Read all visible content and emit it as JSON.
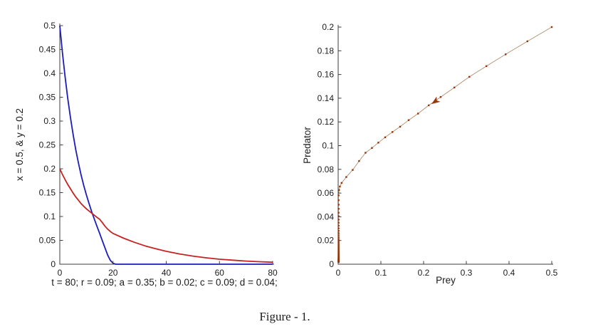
{
  "figure": {
    "caption": "Figure - 1."
  },
  "colors": {
    "axis": "#3c3c3c",
    "text": "#1c1c1c",
    "prey_line": "#1c1cba",
    "predator_line": "#c62222",
    "phase_line": "#b08e6e",
    "phase_marker": "#93330a",
    "arrow": "#9c3808"
  },
  "chart_data": [
    {
      "id": "time-series",
      "type": "line",
      "title": "",
      "xlabel": "t = 80; r = 0.09; a = 0.35; b = 0.02; c = 0.09; d = 0.04;",
      "ylabel": "x = 0.5, & y = 0.2",
      "xlim": [
        0,
        80
      ],
      "ylim": [
        0,
        0.5
      ],
      "grid": false,
      "legend": "none",
      "xticks": {
        "values": [
          0,
          20,
          40,
          60,
          80
        ],
        "labels": [
          "0",
          "20",
          "40",
          "60",
          "80"
        ]
      },
      "yticks": {
        "values": [
          0,
          0.05,
          0.1,
          0.15,
          0.2,
          0.25,
          0.3,
          0.35,
          0.4,
          0.45,
          0.5
        ],
        "labels": [
          "0",
          "0.05",
          "0.1",
          "0.15",
          "0.2",
          "0.25",
          "0.3",
          "0.35",
          "0.4",
          "0.45",
          "0.5"
        ]
      },
      "series": [
        {
          "name": "prey x(t)",
          "color": "#1c1cba",
          "width": 1.8,
          "marker": false,
          "x": [
            0,
            1,
            2,
            3,
            4,
            5,
            6,
            7,
            8,
            9,
            10,
            11,
            12,
            13,
            14,
            15,
            16,
            17,
            18,
            19,
            20,
            21,
            30,
            40,
            50,
            60,
            70,
            80
          ],
          "y": [
            0.5,
            0.443,
            0.392,
            0.347,
            0.307,
            0.272,
            0.24,
            0.212,
            0.187,
            0.165,
            0.145,
            0.127,
            0.11,
            0.094,
            0.079,
            0.064,
            0.049,
            0.034,
            0.019,
            0.008,
            0.002,
            0,
            0,
            0,
            0,
            0,
            0,
            0
          ]
        },
        {
          "name": "predator y(t)",
          "color": "#c62222",
          "width": 1.8,
          "marker": false,
          "x": [
            0,
            1,
            2,
            3,
            4,
            5,
            6,
            7,
            8,
            9,
            10,
            11,
            12,
            13,
            14,
            15,
            16,
            17,
            18,
            19,
            20,
            24,
            28,
            32,
            36,
            40,
            45,
            50,
            55,
            60,
            65,
            70,
            75,
            80
          ],
          "y": [
            0.2,
            0.188,
            0.177,
            0.167,
            0.158,
            0.149,
            0.141,
            0.134,
            0.127,
            0.1215,
            0.116,
            0.1115,
            0.107,
            0.1025,
            0.098,
            0.094,
            0.087,
            0.0795,
            0.0735,
            0.0685,
            0.0645,
            0.0545,
            0.046,
            0.0385,
            0.0325,
            0.027,
            0.0215,
            0.017,
            0.0135,
            0.0105,
            0.0085,
            0.0065,
            0.0052,
            0.0042
          ]
        }
      ]
    },
    {
      "id": "phase-portrait",
      "type": "line",
      "title": "",
      "xlabel": "Prey",
      "ylabel": "Predator",
      "xlim": [
        0,
        0.5
      ],
      "ylim": [
        0,
        0.2
      ],
      "grid": false,
      "legend": "none",
      "xticks": {
        "values": [
          0,
          0.1,
          0.2,
          0.3,
          0.4,
          0.5
        ],
        "labels": [
          "0",
          "0.1",
          "0.2",
          "0.3",
          "0.4",
          "0.5"
        ]
      },
      "yticks": {
        "values": [
          0,
          0.02,
          0.04,
          0.06,
          0.08,
          0.1,
          0.12,
          0.14,
          0.16,
          0.18,
          0.2
        ],
        "labels": [
          "0",
          "0.02",
          "0.04",
          "0.06",
          "0.08",
          "0.1",
          "0.12",
          "0.14",
          "0.16",
          "0.18",
          "0.2"
        ]
      },
      "series": [
        {
          "name": "trajectory (prey, predator)",
          "color": "#b08e6e",
          "width": 0.9,
          "marker": true,
          "marker_color": "#93330a",
          "marker_size": 2.4,
          "x": [
            0.5,
            0.443,
            0.392,
            0.347,
            0.307,
            0.272,
            0.24,
            0.212,
            0.187,
            0.165,
            0.145,
            0.127,
            0.11,
            0.094,
            0.079,
            0.064,
            0.049,
            0.034,
            0.019,
            0.008,
            0.004,
            0.002,
            0.001,
            0.001,
            0.001,
            0.001,
            0.001,
            0.001,
            0.001,
            0.001,
            0.001,
            0.001,
            0.001,
            0.001,
            0.001,
            0.001,
            0.001,
            0.001,
            0.001,
            0.001,
            0.001,
            0.001,
            0.001,
            0.001,
            0.001,
            0.001,
            0.001,
            0.001,
            0.001,
            0.001,
            0.001,
            0.001,
            0.001,
            0.001,
            0.001,
            0.001,
            0.001,
            0.001,
            0.001,
            0.001,
            0.001,
            0.001,
            0.001,
            0.001,
            0.001,
            0.001,
            0.001,
            0.001,
            0.001,
            0.001,
            0.001
          ],
          "y": [
            0.2,
            0.188,
            0.177,
            0.167,
            0.158,
            0.149,
            0.141,
            0.134,
            0.127,
            0.1215,
            0.116,
            0.1115,
            0.107,
            0.1025,
            0.098,
            0.094,
            0.087,
            0.0795,
            0.0735,
            0.0685,
            0.0655,
            0.0625,
            0.0581,
            0.054,
            0.0502,
            0.0467,
            0.0434,
            0.0404,
            0.0376,
            0.035,
            0.0325,
            0.0302,
            0.0281,
            0.0261,
            0.0243,
            0.0226,
            0.021,
            0.0195,
            0.0182,
            0.0169,
            0.0157,
            0.0146,
            0.0136,
            0.0126,
            0.0117,
            0.0109,
            0.0102,
            0.0095,
            0.0088,
            0.0082,
            0.0076,
            0.0071,
            0.0066,
            0.0061,
            0.0057,
            0.0053,
            0.0049,
            0.0046,
            0.0043,
            0.004,
            0.0037,
            0.0034,
            0.0032,
            0.003,
            0.0028,
            0.0026,
            0.0024,
            0.0022,
            0.0021,
            0.0019,
            0.0018
          ]
        }
      ],
      "annotations": [
        {
          "type": "arrow",
          "x": 0.228,
          "y": 0.1375,
          "angle_deg": 145,
          "color": "#9c3808"
        }
      ]
    }
  ]
}
